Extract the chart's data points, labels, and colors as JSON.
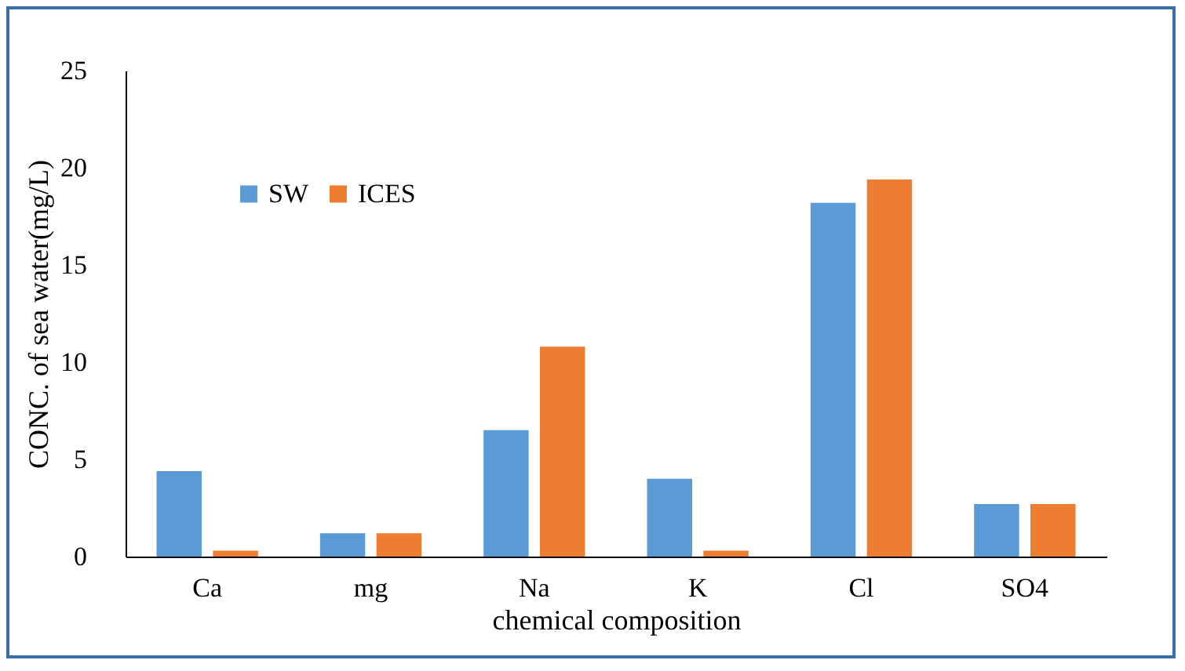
{
  "chart_data": {
    "type": "bar",
    "xlabel": "chemical composition",
    "ylabel": "CONC. of sea water(mg/L)",
    "categories": [
      "Ca",
      "mg",
      "Na",
      "K",
      "Cl",
      "SO4"
    ],
    "series": [
      {
        "name": "SW",
        "color": "#5b9bd5",
        "values": [
          4.4,
          1.2,
          6.5,
          4.0,
          18.2,
          2.7
        ]
      },
      {
        "name": "ICES",
        "color": "#ed7d31",
        "values": [
          0.3,
          1.2,
          10.8,
          0.3,
          19.4,
          2.7
        ]
      }
    ],
    "ylim": [
      0,
      25
    ],
    "yticks": [
      0,
      5,
      10,
      15,
      20,
      25
    ],
    "grid": false,
    "legend": "top left"
  }
}
